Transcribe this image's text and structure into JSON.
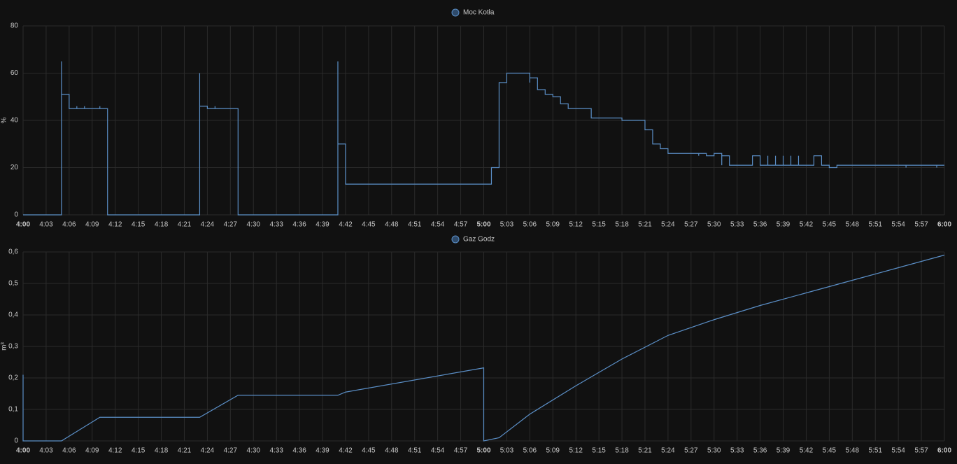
{
  "chart_data": [
    {
      "type": "line",
      "step": true,
      "y_label": "%",
      "x": [
        "4:00",
        "4:05",
        "4:05",
        "4:06",
        "4:06",
        "4:07",
        "4:07",
        "4:08",
        "4:08",
        "4:10",
        "4:10",
        "4:11",
        "4:23",
        "4:23",
        "4:24",
        "4:25",
        "4:25",
        "4:28",
        "4:41",
        "4:41",
        "4:41",
        "4:42",
        "5:01",
        "5:02",
        "5:02",
        "5:03",
        "5:06",
        "5:06",
        "5:07",
        "5:07",
        "5:08",
        "5:09",
        "5:10",
        "5:11",
        "5:14",
        "5:18",
        "5:21",
        "5:22",
        "5:22",
        "5:23",
        "5:24",
        "5:28",
        "5:28",
        "5:29",
        "5:30",
        "5:31",
        "5:31",
        "5:32",
        "5:35",
        "5:36",
        "5:37",
        "5:37",
        "5:38",
        "5:38",
        "5:39",
        "5:39",
        "5:40",
        "5:40",
        "5:41",
        "5:41",
        "5:43",
        "5:44",
        "5:45",
        "5:46",
        "5:55",
        "5:55",
        "5:59",
        "5:59",
        "6:00"
      ],
      "series": [
        {
          "name": "Moc Kotła",
          "color": "#5b8fc7",
          "values": [
            0,
            65,
            51,
            46,
            45,
            46,
            45,
            46,
            45,
            46,
            45,
            0,
            60,
            46,
            45,
            46,
            45,
            0,
            65,
            50,
            30,
            13,
            20,
            51,
            56,
            60,
            56,
            58,
            55,
            53,
            51,
            50,
            47,
            45,
            41,
            40,
            36,
            33,
            30,
            28,
            26,
            25,
            26,
            25,
            26,
            21,
            25,
            21,
            25,
            21,
            25,
            21,
            25,
            21,
            25,
            21,
            25,
            21,
            25,
            21,
            25,
            21,
            20,
            21,
            20,
            21,
            20,
            21,
            21
          ]
        }
      ],
      "xlim": [
        "4:00",
        "6:00"
      ],
      "xticks": [
        "4:00",
        "4:03",
        "4:06",
        "4:09",
        "4:12",
        "4:15",
        "4:18",
        "4:21",
        "4:24",
        "4:27",
        "4:30",
        "4:33",
        "4:36",
        "4:39",
        "4:42",
        "4:45",
        "4:48",
        "4:51",
        "4:54",
        "4:57",
        "5:00",
        "5:03",
        "5:06",
        "5:09",
        "5:12",
        "5:15",
        "5:18",
        "5:21",
        "5:24",
        "5:27",
        "5:30",
        "5:33",
        "5:36",
        "5:39",
        "5:42",
        "5:45",
        "5:48",
        "5:51",
        "5:54",
        "5:57",
        "6:00"
      ],
      "ylim": [
        0,
        80
      ],
      "yticks": [
        0,
        20,
        40,
        60,
        80
      ],
      "grid": true
    },
    {
      "type": "line",
      "step": false,
      "y_label": "m³",
      "x": [
        "4:00",
        "4:00",
        "4:05",
        "4:10",
        "4:23",
        "4:28",
        "4:41",
        "4:42",
        "5:00",
        "5:00",
        "5:02",
        "5:06",
        "5:12",
        "5:18",
        "5:24",
        "5:30",
        "5:36",
        "5:42",
        "5:48",
        "5:54",
        "6:00"
      ],
      "series": [
        {
          "name": "Gaz Godz",
          "color": "#5b8fc7",
          "values": [
            0.21,
            0,
            0,
            0.075,
            0.075,
            0.145,
            0.145,
            0.155,
            0.232,
            0,
            0.01,
            0.085,
            0.175,
            0.26,
            0.335,
            0.385,
            0.43,
            0.47,
            0.51,
            0.55,
            0.59
          ]
        }
      ],
      "xlim": [
        "4:00",
        "6:00"
      ],
      "xticks": [
        "4:00",
        "4:03",
        "4:06",
        "4:09",
        "4:12",
        "4:15",
        "4:18",
        "4:21",
        "4:24",
        "4:27",
        "4:30",
        "4:33",
        "4:36",
        "4:39",
        "4:42",
        "4:45",
        "4:48",
        "4:51",
        "4:54",
        "4:57",
        "5:00",
        "5:03",
        "5:06",
        "5:09",
        "5:12",
        "5:15",
        "5:18",
        "5:21",
        "5:24",
        "5:27",
        "5:30",
        "5:33",
        "5:36",
        "5:39",
        "5:42",
        "5:45",
        "5:48",
        "5:51",
        "5:54",
        "5:57",
        "6:00"
      ],
      "ylim": [
        0,
        0.6
      ],
      "yticks": [
        0,
        {
          "value": 0.1,
          "label": "0,1"
        },
        {
          "value": 0.2,
          "label": "0,2"
        },
        {
          "value": 0.3,
          "label": "0,3"
        },
        {
          "value": 0.4,
          "label": "0,4"
        },
        {
          "value": 0.5,
          "label": "0,5"
        },
        {
          "value": 0.6,
          "label": "0,6"
        }
      ],
      "grid": true
    }
  ]
}
